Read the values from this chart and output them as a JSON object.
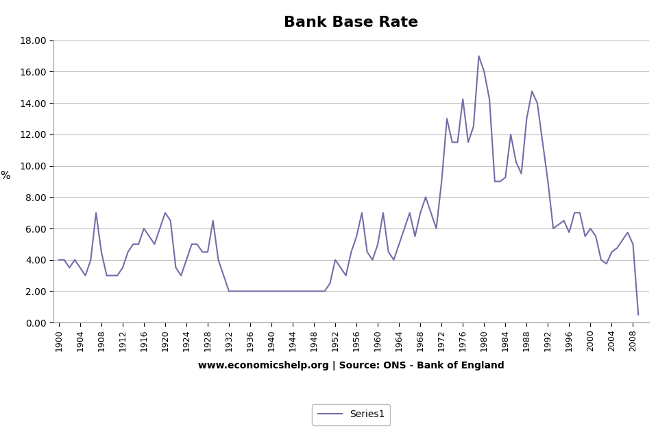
{
  "title": "Bank Base Rate",
  "ylabel": "%",
  "xlabel": "www.economicshelp.org | Source: ONS - Bank of England",
  "line_color": "#7b68a8",
  "line_width": 1.5,
  "legend_label": "Series1",
  "ylim": [
    0,
    18
  ],
  "ytick_step": 2,
  "background_color": "#ffffff",
  "grid_color": "#c0c0c0",
  "years": [
    1900,
    1901,
    1902,
    1903,
    1904,
    1905,
    1906,
    1907,
    1908,
    1909,
    1910,
    1911,
    1912,
    1913,
    1914,
    1915,
    1916,
    1917,
    1918,
    1919,
    1920,
    1921,
    1922,
    1923,
    1924,
    1925,
    1926,
    1927,
    1928,
    1929,
    1930,
    1931,
    1932,
    1933,
    1934,
    1935,
    1936,
    1937,
    1938,
    1939,
    1940,
    1941,
    1942,
    1943,
    1944,
    1945,
    1946,
    1947,
    1948,
    1949,
    1950,
    1951,
    1952,
    1953,
    1954,
    1955,
    1956,
    1957,
    1958,
    1959,
    1960,
    1961,
    1962,
    1963,
    1964,
    1965,
    1966,
    1967,
    1968,
    1969,
    1970,
    1971,
    1972,
    1973,
    1974,
    1975,
    1976,
    1977,
    1978,
    1979,
    1980,
    1981,
    1982,
    1983,
    1984,
    1985,
    1986,
    1987,
    1988,
    1989,
    1990,
    1991,
    1992,
    1993,
    1994,
    1995,
    1996,
    1997,
    1998,
    1999,
    2000,
    2001,
    2002,
    2003,
    2004,
    2005,
    2006,
    2007,
    2008,
    2009
  ],
  "rates": [
    4.0,
    4.0,
    3.5,
    4.0,
    3.5,
    3.0,
    4.0,
    7.0,
    4.5,
    3.0,
    3.0,
    3.0,
    3.5,
    4.5,
    5.0,
    5.0,
    6.0,
    5.5,
    5.0,
    6.0,
    7.0,
    6.5,
    3.5,
    3.0,
    4.0,
    5.0,
    5.0,
    4.5,
    4.5,
    6.5,
    4.0,
    3.0,
    2.0,
    2.0,
    2.0,
    2.0,
    2.0,
    2.0,
    2.0,
    2.0,
    2.0,
    2.0,
    2.0,
    2.0,
    2.0,
    2.0,
    2.0,
    2.0,
    2.0,
    2.0,
    2.0,
    2.5,
    4.0,
    3.5,
    3.0,
    4.5,
    5.5,
    7.0,
    4.5,
    4.0,
    5.0,
    7.0,
    4.5,
    4.0,
    5.0,
    6.0,
    7.0,
    5.5,
    7.0,
    8.0,
    7.0,
    6.0,
    9.0,
    13.0,
    11.5,
    11.5,
    14.25,
    11.5,
    12.5,
    17.0,
    16.0,
    14.25,
    9.0,
    9.0,
    9.25,
    12.0,
    10.25,
    9.5,
    13.0,
    14.75,
    14.0,
    11.5,
    9.0,
    6.0,
    6.25,
    6.5,
    5.75,
    7.0,
    7.0,
    5.5,
    6.0,
    5.5,
    4.0,
    3.75,
    4.5,
    4.75,
    5.25,
    5.75,
    5.0,
    0.5
  ],
  "xtick_years": [
    1900,
    1904,
    1908,
    1912,
    1916,
    1920,
    1924,
    1928,
    1932,
    1936,
    1940,
    1944,
    1948,
    1952,
    1956,
    1960,
    1964,
    1968,
    1972,
    1976,
    1980,
    1984,
    1988,
    1992,
    1996,
    2000,
    2004,
    2008
  ],
  "xlim_min": 1899,
  "xlim_max": 2011
}
